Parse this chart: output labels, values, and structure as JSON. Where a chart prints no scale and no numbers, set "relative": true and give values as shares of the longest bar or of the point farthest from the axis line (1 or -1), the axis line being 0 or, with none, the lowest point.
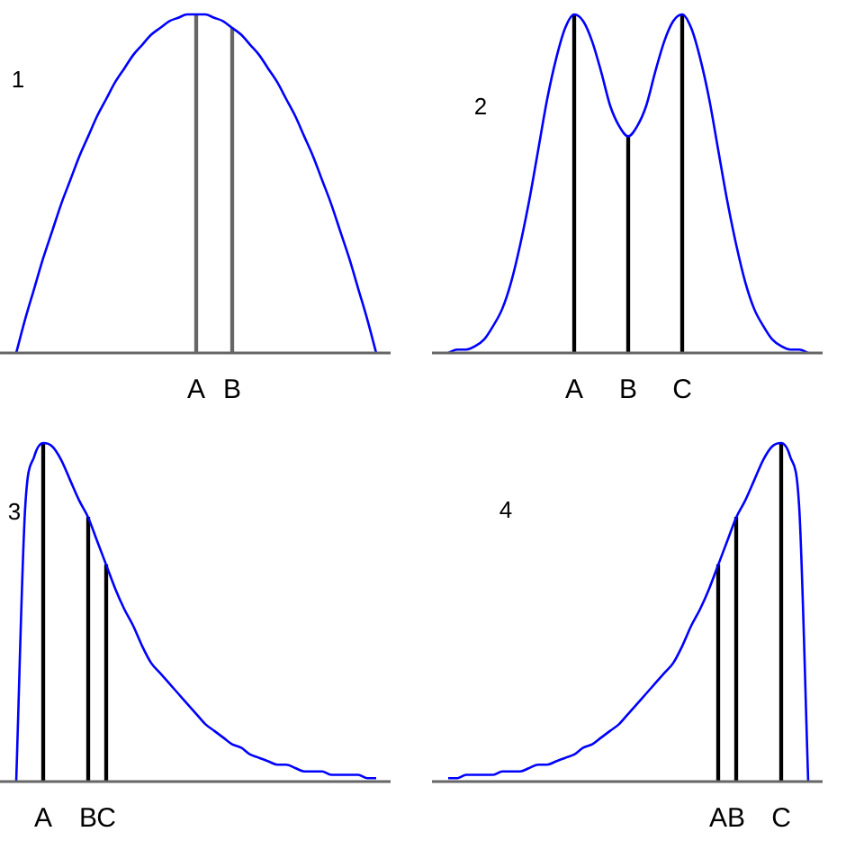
{
  "chart_data": [
    {
      "type": "line",
      "relative": true,
      "annotations": [
        "1"
      ],
      "categories": [
        null,
        null,
        null,
        null,
        null,
        null,
        null,
        null,
        null,
        null,
        null,
        null,
        null,
        null,
        null,
        null,
        null,
        null,
        null,
        null,
        "A",
        null,
        null,
        null,
        "B",
        null,
        null,
        null,
        null,
        null,
        null,
        null,
        null,
        null,
        null,
        null,
        null,
        null,
        null,
        null,
        null
      ],
      "series": [
        {
          "color": "#0000ff",
          "values": [
            0,
            0.1,
            0.19,
            0.28,
            0.36,
            0.44,
            0.51,
            0.58,
            0.64,
            0.7,
            0.75,
            0.8,
            0.84,
            0.88,
            0.91,
            0.94,
            0.96,
            0.98,
            0.99,
            1.0,
            1,
            1.0,
            0.99,
            0.98,
            0.96,
            0.94,
            0.91,
            0.88,
            0.84,
            0.8,
            0.75,
            0.7,
            0.64,
            0.58,
            0.51,
            0.44,
            0.36,
            0.28,
            0.19,
            0.1,
            0
          ]
        },
        {
          "type": "bar",
          "color": "#666666",
          "values": [
            null,
            null,
            null,
            null,
            null,
            null,
            null,
            null,
            null,
            null,
            null,
            null,
            null,
            null,
            null,
            null,
            null,
            null,
            null,
            null,
            1,
            null,
            null,
            null,
            0.96,
            null,
            null,
            null,
            null,
            null,
            null,
            null,
            null,
            null,
            null,
            null,
            null,
            null,
            null,
            null,
            null
          ]
        }
      ]
    },
    {
      "type": "line",
      "relative": true,
      "annotations": [
        "2"
      ],
      "categories": [
        null,
        null,
        null,
        null,
        null,
        null,
        null,
        null,
        null,
        null,
        null,
        null,
        null,
        null,
        "A",
        null,
        null,
        null,
        null,
        null,
        "B",
        null,
        null,
        null,
        null,
        null,
        "C",
        null,
        null,
        null,
        null,
        null,
        null,
        null,
        null,
        null,
        null,
        null,
        null,
        null,
        null
      ],
      "series": [
        {
          "color": "#0000ff",
          "values": [
            0,
            0.01,
            0.01,
            0.02,
            0.04,
            0.08,
            0.13,
            0.21,
            0.32,
            0.45,
            0.6,
            0.75,
            0.87,
            0.96,
            1,
            0.98,
            0.92,
            0.83,
            0.73,
            0.67,
            0.64,
            0.67,
            0.73,
            0.83,
            0.92,
            0.98,
            1,
            0.96,
            0.87,
            0.75,
            0.6,
            0.45,
            0.32,
            0.21,
            0.13,
            0.08,
            0.04,
            0.02,
            0.01,
            0.01,
            0
          ]
        },
        {
          "type": "bar",
          "color": "#000000",
          "values": [
            null,
            null,
            null,
            null,
            null,
            null,
            null,
            null,
            null,
            null,
            null,
            null,
            null,
            null,
            1,
            null,
            null,
            null,
            null,
            null,
            0.64,
            null,
            null,
            null,
            null,
            null,
            1,
            null,
            null,
            null,
            null,
            null,
            null,
            null,
            null,
            null,
            null,
            null,
            null,
            null,
            null
          ]
        }
      ]
    },
    {
      "type": "line",
      "relative": true,
      "annotations": [
        "3"
      ],
      "categories": [
        null,
        null,
        null,
        "A",
        null,
        null,
        null,
        null,
        "B",
        null,
        "C",
        null,
        null,
        null,
        null,
        null,
        null,
        null,
        null,
        null,
        null,
        null,
        null,
        null,
        null,
        null,
        null,
        null,
        null,
        null,
        null,
        null,
        null,
        null,
        null,
        null,
        null,
        null,
        null,
        null,
        null
      ],
      "series": [
        {
          "color": "#0000ff",
          "values": [
            0,
            0.81,
            0.96,
            1,
            0.99,
            0.95,
            0.89,
            0.83,
            0.78,
            0.71,
            0.64,
            0.57,
            0.51,
            0.46,
            0.4,
            0.35,
            0.32,
            0.29,
            0.26,
            0.23,
            0.2,
            0.17,
            0.15,
            0.13,
            0.11,
            0.1,
            0.08,
            0.07,
            0.06,
            0.05,
            0.05,
            0.04,
            0.03,
            0.03,
            0.03,
            0.02,
            0.02,
            0.02,
            0.02,
            0.01,
            0.01
          ]
        },
        {
          "type": "bar",
          "color": "#000000",
          "values": [
            null,
            null,
            null,
            1,
            null,
            null,
            null,
            null,
            0.78,
            null,
            0.64,
            null,
            null,
            null,
            null,
            null,
            null,
            null,
            null,
            null,
            null,
            null,
            null,
            null,
            null,
            null,
            null,
            null,
            null,
            null,
            null,
            null,
            null,
            null,
            null,
            null,
            null,
            null,
            null,
            null,
            null
          ]
        }
      ]
    },
    {
      "type": "line",
      "relative": true,
      "annotations": [
        "4"
      ],
      "categories": [
        null,
        null,
        null,
        null,
        null,
        null,
        null,
        null,
        null,
        null,
        null,
        null,
        null,
        null,
        null,
        null,
        null,
        null,
        null,
        null,
        null,
        null,
        null,
        null,
        null,
        null,
        null,
        null,
        null,
        null,
        "A",
        null,
        "B",
        null,
        null,
        null,
        null,
        "C",
        null,
        null,
        null
      ],
      "series": [
        {
          "color": "#0000ff",
          "values": [
            0.01,
            0.01,
            0.02,
            0.02,
            0.02,
            0.02,
            0.03,
            0.03,
            0.03,
            0.04,
            0.05,
            0.05,
            0.06,
            0.07,
            0.08,
            0.1,
            0.11,
            0.13,
            0.15,
            0.17,
            0.2,
            0.23,
            0.26,
            0.29,
            0.32,
            0.35,
            0.4,
            0.46,
            0.51,
            0.57,
            0.64,
            0.71,
            0.78,
            0.83,
            0.89,
            0.95,
            0.99,
            1,
            0.96,
            0.81,
            0
          ]
        },
        {
          "type": "bar",
          "color": "#000000",
          "values": [
            null,
            null,
            null,
            null,
            null,
            null,
            null,
            null,
            null,
            null,
            null,
            null,
            null,
            null,
            null,
            null,
            null,
            null,
            null,
            null,
            null,
            null,
            null,
            null,
            null,
            null,
            null,
            null,
            null,
            null,
            0.64,
            null,
            0.78,
            null,
            null,
            null,
            null,
            1,
            null,
            null,
            null
          ]
        }
      ]
    }
  ]
}
